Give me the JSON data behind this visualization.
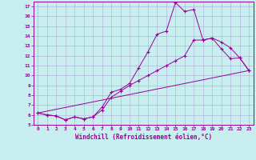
{
  "xlabel": "Windchill (Refroidissement éolien,°C)",
  "bg_color": "#c8eef0",
  "grid_color": "#b0b8d8",
  "line_color": "#990099",
  "xlim": [
    -0.5,
    23.5
  ],
  "ylim": [
    5,
    17.5
  ],
  "xticks": [
    0,
    1,
    2,
    3,
    4,
    5,
    6,
    7,
    8,
    9,
    10,
    11,
    12,
    13,
    14,
    15,
    16,
    17,
    18,
    19,
    20,
    21,
    22,
    23
  ],
  "yticks": [
    5,
    6,
    7,
    8,
    9,
    10,
    11,
    12,
    13,
    14,
    15,
    16,
    17
  ],
  "curve1_x": [
    0,
    1,
    2,
    3,
    4,
    5,
    6,
    7,
    8,
    9,
    10,
    11,
    12,
    13,
    14,
    15,
    16,
    17,
    18,
    19,
    20,
    21,
    22,
    23
  ],
  "curve1_y": [
    6.2,
    6.0,
    5.9,
    5.5,
    5.8,
    5.6,
    5.8,
    6.8,
    8.3,
    8.6,
    9.2,
    10.8,
    12.4,
    14.2,
    14.5,
    17.4,
    16.5,
    16.7,
    13.6,
    13.8,
    12.7,
    11.7,
    11.8,
    10.5
  ],
  "curve2_x": [
    0,
    1,
    2,
    3,
    4,
    5,
    6,
    7,
    8,
    9,
    10,
    11,
    12,
    13,
    14,
    15,
    16,
    17,
    18,
    19,
    20,
    21,
    22,
    23
  ],
  "curve2_y": [
    6.2,
    6.0,
    5.9,
    5.5,
    5.8,
    5.6,
    5.8,
    6.5,
    7.8,
    8.4,
    9.0,
    9.5,
    10.0,
    10.5,
    11.0,
    11.5,
    12.0,
    13.6,
    13.6,
    13.8,
    13.4,
    12.8,
    11.8,
    10.5
  ],
  "curve3_x": [
    0,
    23
  ],
  "curve3_y": [
    6.2,
    10.5
  ]
}
